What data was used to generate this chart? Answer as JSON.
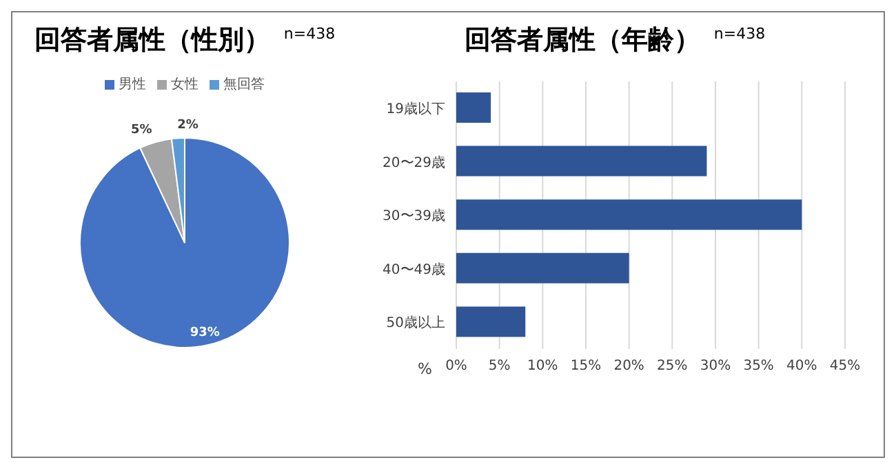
{
  "chart_data": [
    {
      "type": "pie",
      "title": "回答者属性（性別）",
      "subtitle": "n=438",
      "categories": [
        "男性",
        "女性",
        "無回答"
      ],
      "values": [
        93,
        5,
        2
      ],
      "colors": [
        "#4472c4",
        "#a5a5a5",
        "#5b9bd5"
      ],
      "value_labels": [
        "93%",
        "5%",
        "2%"
      ],
      "legend": "top"
    },
    {
      "type": "bar",
      "orientation": "horizontal",
      "title": "回答者属性（年齢）",
      "subtitle": "n=438",
      "xlabel": "%",
      "categories": [
        "19歳以下",
        "20〜29歳",
        "30〜39歳",
        "40〜49歳",
        "50歳以上"
      ],
      "values": [
        4,
        29,
        40,
        20,
        8
      ],
      "color": "#2f5597",
      "xlim": [
        0,
        45
      ],
      "xticks": [
        {
          "value": 0,
          "label": "0%"
        },
        {
          "value": 5,
          "label": "5%"
        },
        {
          "value": 10,
          "label": "10%"
        },
        {
          "value": 15,
          "label": "15%"
        },
        {
          "value": 20,
          "label": "20%"
        },
        {
          "value": 25,
          "label": "25%"
        },
        {
          "value": 30,
          "label": "30%"
        },
        {
          "value": 35,
          "label": "35%"
        },
        {
          "value": 40,
          "label": "40%"
        },
        {
          "value": 45,
          "label": "45%"
        }
      ],
      "grid": "x"
    }
  ]
}
